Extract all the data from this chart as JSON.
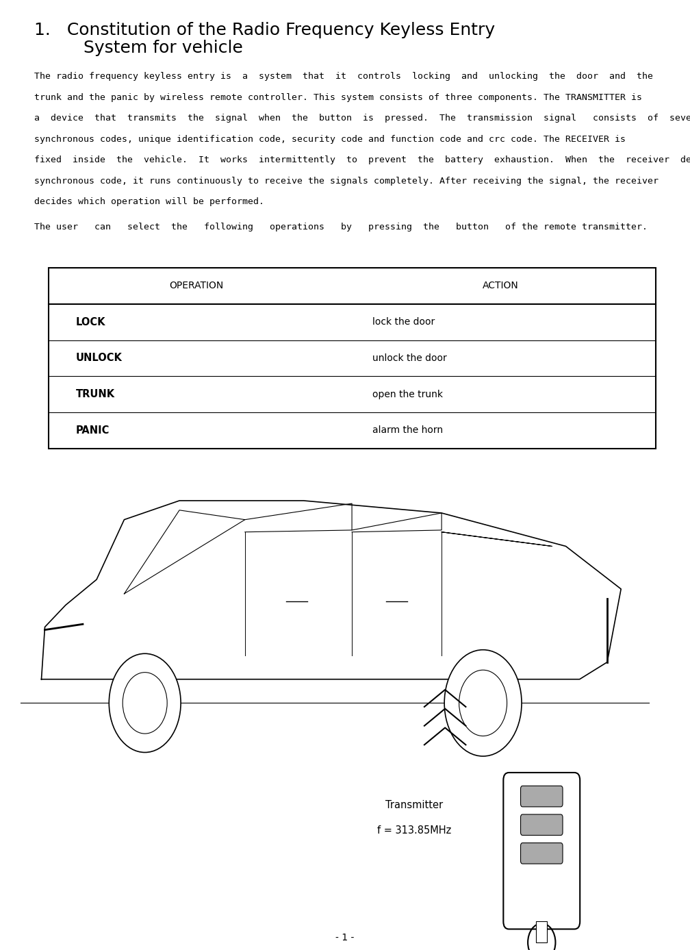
{
  "title_line1": "1.   Constitution of the Radio Frequency Keyless Entry",
  "title_line2": "         System for vehicle",
  "body_lines": [
    "The radio frequency keyless entry is  a  system  that  it  controls  locking  and  unlocking  the  door  and  the",
    "trunk and the panic by wireless remote controller. This system consists of three components. The TRANSMITTER is",
    "a  device  that  transmits  the  signal  when  the  button  is  pressed.  The  transmission  signal   consists  of  several",
    "synchronous codes, unique identification code, security code and function code and crc code. The RECEIVER is",
    "fixed  inside  the  vehicle.  It  works  intermittently  to  prevent  the  battery  exhaustion.  When  the  receiver  detects  the",
    "synchronous code, it runs continuously to receive the signals completely. After receiving the signal, the receiver",
    "decides which operation will be performed."
  ],
  "user_text": "The user   can   select  the   following   operations   by   pressing  the   button   of the remote transmitter.",
  "table_headers": [
    "OPERATION",
    "ACTION"
  ],
  "table_rows": [
    [
      "LOCK",
      "lock the door"
    ],
    [
      "UNLOCK",
      "unlock the door"
    ],
    [
      "TRUNK",
      "open the trunk"
    ],
    [
      "PANIC",
      "alarm the horn"
    ]
  ],
  "transmitter_label": "Transmitter",
  "freq_label": "f = 313.85MHz",
  "page_number": "- 1 -",
  "bg_color": "#ffffff",
  "text_color": "#000000",
  "font_size_title": 18,
  "font_size_body": 9.5,
  "font_size_table_header": 10,
  "font_size_table_row": 10.5,
  "font_size_page": 10
}
